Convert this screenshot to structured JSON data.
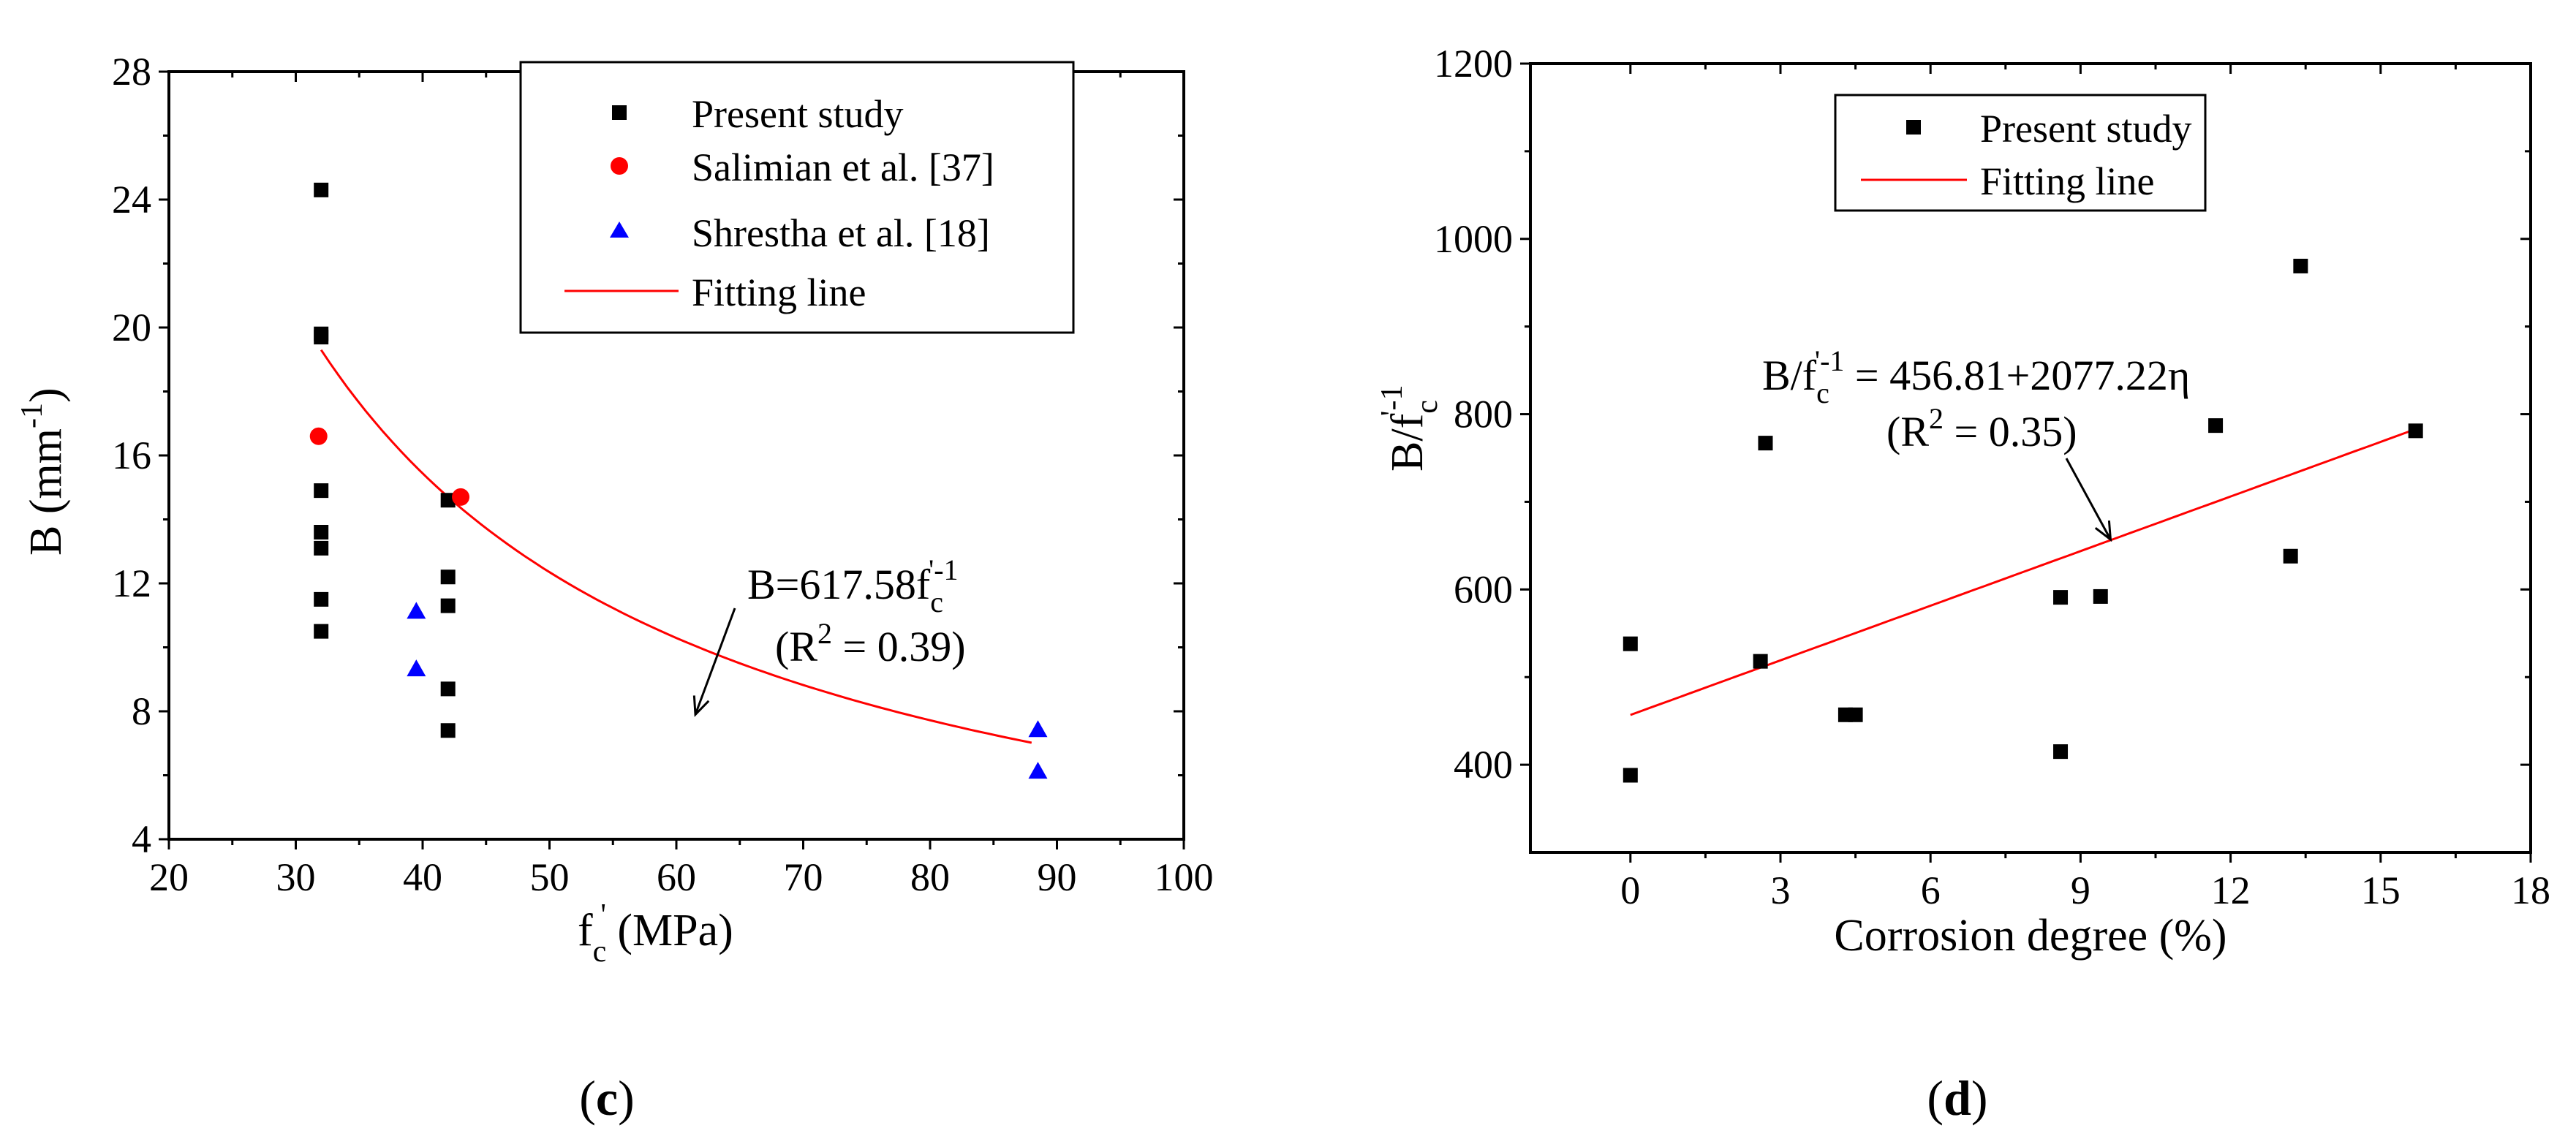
{
  "chart_data": [
    {
      "type": "scatter",
      "panel_label": "(c)",
      "panel_letter": "c",
      "xlabel": "f_c' (MPa)",
      "xlabel_parts": {
        "main": "f",
        "sub": "c",
        "sup": "'",
        "unit": " (MPa)"
      },
      "ylabel": "B (mm^-1)",
      "ylabel_parts": {
        "main": "B (mm",
        "sup": "-1",
        "close": ")"
      },
      "xlim": [
        20,
        100
      ],
      "ylim": [
        4,
        28
      ],
      "xticks": [
        20,
        30,
        40,
        50,
        60,
        70,
        80,
        90,
        100
      ],
      "yticks": [
        4,
        8,
        12,
        16,
        20,
        24,
        28
      ],
      "legend_position": "top-right",
      "series": [
        {
          "name": "Present study",
          "marker": "square",
          "color": "#000000",
          "points": [
            [
              32,
              24.3
            ],
            [
              32,
              19.7
            ],
            [
              32,
              19.8
            ],
            [
              32,
              14.9
            ],
            [
              32,
              13.6
            ],
            [
              32,
              13.1
            ],
            [
              32,
              11.5
            ],
            [
              32,
              10.5
            ],
            [
              42,
              14.6
            ],
            [
              42,
              12.2
            ],
            [
              42,
              11.3
            ],
            [
              42,
              8.7
            ],
            [
              42,
              7.4
            ]
          ]
        },
        {
          "name": "Salimian et al. [37]",
          "marker": "circle",
          "color": "#ff0000",
          "points": [
            [
              31.8,
              16.6
            ],
            [
              43,
              14.7
            ]
          ]
        },
        {
          "name": "Shrestha et al. [18]",
          "marker": "triangle",
          "color": "#0000ff",
          "points": [
            [
              39.5,
              11.1
            ],
            [
              39.5,
              9.3
            ],
            [
              88.5,
              7.4
            ],
            [
              88.5,
              6.1
            ]
          ]
        },
        {
          "name": "Fitting line",
          "marker": "line",
          "color": "#ff0000",
          "equation": {
            "coef": 617.58,
            "power": -1,
            "x_from": 32,
            "x_to": 88
          }
        }
      ],
      "annotation": {
        "equation": "B=617.58f_c'^-1",
        "eq_parts": {
          "main": "B=617.58f",
          "sub": "c",
          "sup": "'-1"
        },
        "r2": "(R^2 = 0.39)",
        "r2_parts": {
          "open": "(R",
          "sup": "2",
          "rest": " = 0.39)"
        },
        "arrow_to": [
          61.5,
          7.9
        ]
      }
    },
    {
      "type": "scatter",
      "panel_label": "(d)",
      "panel_letter": "d",
      "xlabel": "Corrosion degree (%)",
      "ylabel": "B/f_c'^-1",
      "ylabel_parts": {
        "main": "B/f",
        "sub": "c",
        "sup": "'-1"
      },
      "xlim": [
        -2,
        18
      ],
      "ylim": [
        300,
        1200
      ],
      "xticks": [
        0,
        3,
        6,
        9,
        12,
        15,
        18
      ],
      "yticks": [
        400,
        600,
        800,
        1000,
        1200
      ],
      "legend_position": "top-left",
      "series": [
        {
          "name": "Present study",
          "marker": "square",
          "color": "#000000",
          "points": [
            [
              0,
              388
            ],
            [
              0,
              538
            ],
            [
              2.6,
              518
            ],
            [
              2.7,
              767
            ],
            [
              4.3,
              457
            ],
            [
              4.5,
              457
            ],
            [
              8.6,
              415
            ],
            [
              8.6,
              591
            ],
            [
              9.4,
              592
            ],
            [
              11.7,
              787
            ],
            [
              13.2,
              638
            ],
            [
              13.4,
              969
            ],
            [
              15.7,
              781
            ]
          ]
        },
        {
          "name": "Fitting line",
          "marker": "line",
          "color": "#ff0000",
          "equation": {
            "intercept": 456.81,
            "slope": 2077.22,
            "x_from": 0,
            "x_to": 15.7,
            "x_scale": 0.01
          }
        }
      ],
      "annotation": {
        "equation": "B/f_c'^-1 = 456.81+2077.22η",
        "eq_parts": {
          "main": "B/f",
          "sub": "c",
          "sup": "'-1",
          "rest": " = 456.81+2077.22η"
        },
        "r2": "(R^2 = 0.35)",
        "r2_parts": {
          "open": "(R",
          "sup": "2",
          "rest": " = 0.35)"
        },
        "arrow_to": [
          9.6,
          657
        ]
      }
    }
  ]
}
